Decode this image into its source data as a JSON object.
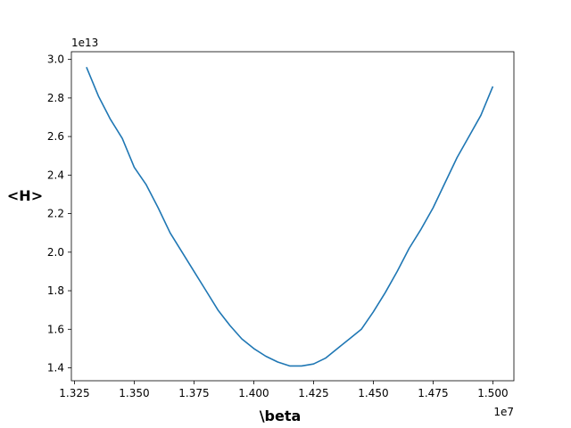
{
  "chart_data": {
    "type": "line",
    "title": "",
    "xlabel": "\\beta",
    "ylabel": "<H>",
    "x_offset_label": "1e7",
    "y_offset_label": "1e13",
    "xlim": [
      1.3237,
      1.5088
    ],
    "ylim": [
      1.333,
      3.04
    ],
    "x_ticks": [
      "1.325",
      "1.350",
      "1.375",
      "1.400",
      "1.425",
      "1.450",
      "1.475",
      "1.500"
    ],
    "y_ticks": [
      "1.4",
      "1.6",
      "1.8",
      "2.0",
      "2.2",
      "2.4",
      "2.6",
      "2.8",
      "3.0"
    ],
    "grid": false,
    "line_color": "#1f77b4",
    "series": [
      {
        "x": [
          1.33,
          1.335,
          1.34,
          1.345,
          1.35,
          1.355,
          1.36,
          1.365,
          1.37,
          1.375,
          1.38,
          1.385,
          1.39,
          1.395,
          1.4,
          1.405,
          1.41,
          1.415,
          1.42,
          1.425,
          1.43,
          1.435,
          1.44,
          1.445,
          1.45,
          1.455,
          1.46,
          1.465,
          1.47,
          1.475,
          1.48,
          1.485,
          1.49,
          1.495,
          1.5
        ],
        "y": [
          2.96,
          2.81,
          2.69,
          2.59,
          2.44,
          2.35,
          2.23,
          2.1,
          2.0,
          1.9,
          1.8,
          1.7,
          1.62,
          1.55,
          1.5,
          1.46,
          1.43,
          1.41,
          1.41,
          1.42,
          1.45,
          1.5,
          1.55,
          1.6,
          1.69,
          1.79,
          1.9,
          2.02,
          2.12,
          2.23,
          2.36,
          2.49,
          2.6,
          2.71,
          2.86
        ]
      }
    ]
  }
}
